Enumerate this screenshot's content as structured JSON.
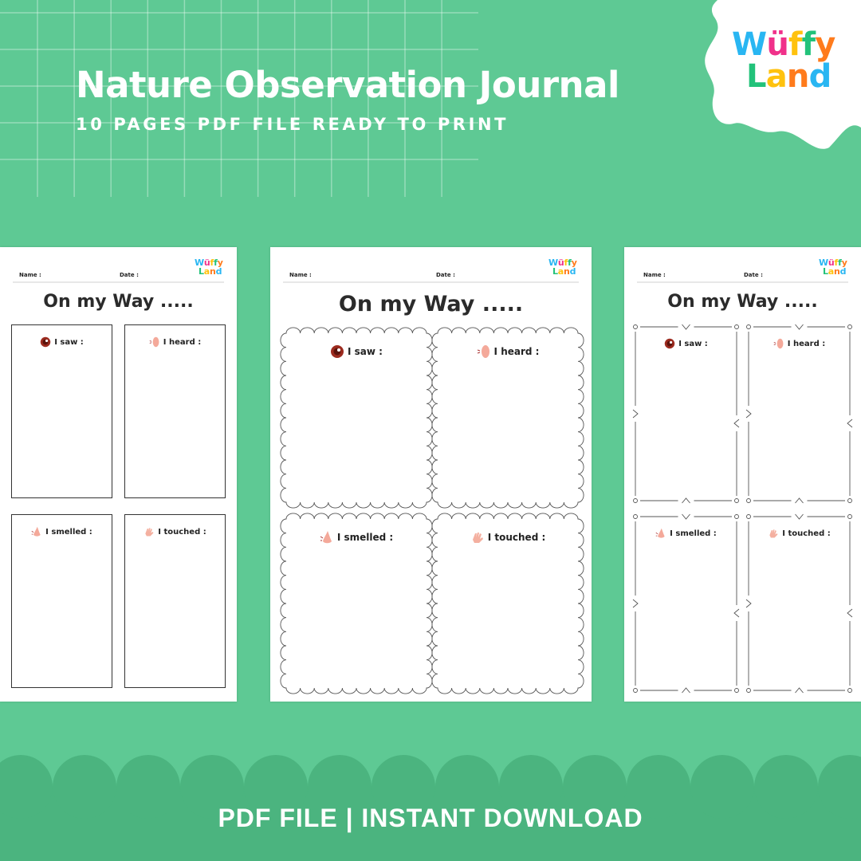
{
  "header": {
    "title": "Nature Observation Journal",
    "subtitle": "10 PAGES PDF FILE READY TO PRINT"
  },
  "brand": {
    "line1": [
      "W",
      "ü",
      "f",
      "f",
      "y"
    ],
    "line2": [
      "L",
      "a",
      "n",
      "d"
    ],
    "colors": [
      "#29b6f2",
      "#f0318a",
      "#ffc20e",
      "#22c27a",
      "#ff7b1c"
    ]
  },
  "worksheet": {
    "name_label": "Name :",
    "date_label": "Date :",
    "title": "On my Way .....",
    "sections": [
      {
        "label": "I saw :",
        "icon": "eye-icon"
      },
      {
        "label": "I heard :",
        "icon": "ear-icon"
      },
      {
        "label": "I smelled :",
        "icon": "nose-icon"
      },
      {
        "label": "I touched :",
        "icon": "hand-icon"
      }
    ]
  },
  "pages": [
    {
      "style": "plain"
    },
    {
      "style": "scalloped"
    },
    {
      "style": "decorated"
    }
  ],
  "footer": {
    "text": "PDF FILE | INSTANT DOWNLOAD"
  },
  "colors": {
    "background": "#5ec994",
    "bottom_band": "#4bb47f",
    "text": "#ffffff"
  }
}
